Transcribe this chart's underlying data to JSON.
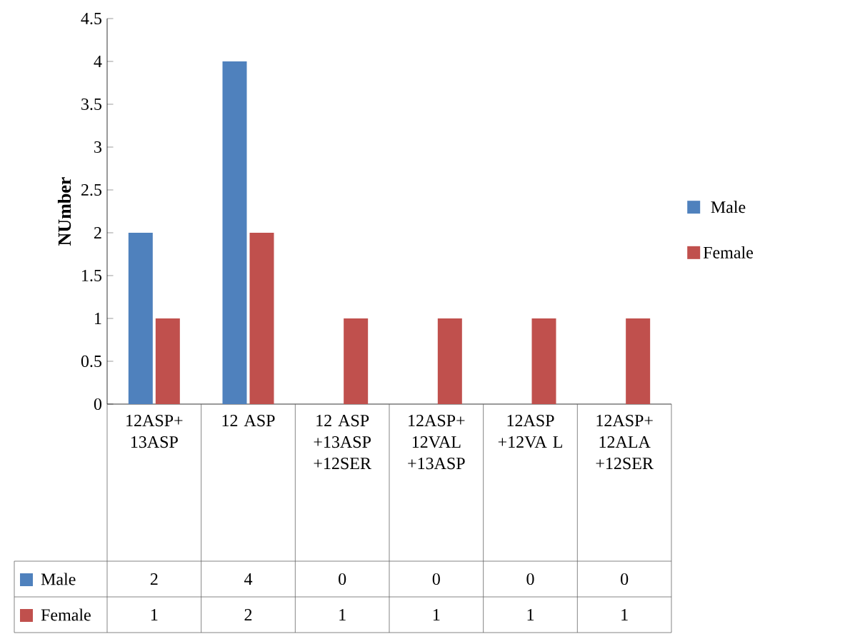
{
  "chart_data": {
    "type": "bar",
    "ylabel": "NUmber",
    "categories": [
      "12ASP+ 13ASP",
      "12 ASP",
      "12 ASP +13ASP +12SER",
      "12ASP+ 12VAL +13ASP",
      "12ASP +12VA L",
      "12ASP+ 12ALA +12SER"
    ],
    "series": [
      {
        "name": "Male",
        "color": "#4f81bd",
        "values": [
          2,
          4,
          0,
          0,
          0,
          0
        ]
      },
      {
        "name": "Female",
        "color": "#c0504d",
        "values": [
          1,
          2,
          1,
          1,
          1,
          1
        ]
      }
    ],
    "ylim": [
      0,
      4.5
    ],
    "yticks": [
      0,
      0.5,
      1,
      1.5,
      2,
      2.5,
      3,
      3.5,
      4,
      4.5
    ],
    "legend": "right",
    "data_labels": true
  }
}
